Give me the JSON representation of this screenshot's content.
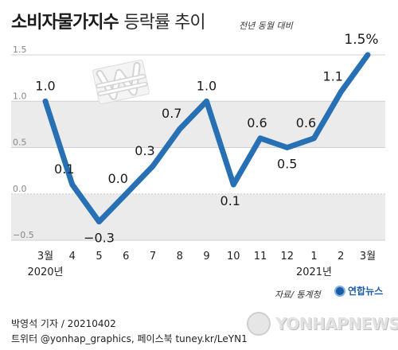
{
  "header": {
    "title_bold": "소비자물가지수",
    "title_light": "등락률 추이",
    "subtitle": "전년 동월 대비"
  },
  "chart_data": {
    "type": "line",
    "title": "소비자물가지수 등락률 추이",
    "subtitle": "전년 동월 대비",
    "categories": [
      "3월",
      "4",
      "5",
      "6",
      "7",
      "8",
      "9",
      "10",
      "11",
      "12",
      "1",
      "2",
      "3월"
    ],
    "year_labels": [
      {
        "label": "2020년",
        "category_index": 0
      },
      {
        "label": "2021년",
        "category_index": 10
      }
    ],
    "series": [
      {
        "values": [
          1.0,
          0.1,
          -0.3,
          0.0,
          0.3,
          0.7,
          1.0,
          0.1,
          0.6,
          0.5,
          0.6,
          1.1,
          1.5
        ],
        "data_labels": [
          "1.0",
          "0.1",
          "−0.3",
          "0.0",
          "0.3",
          "0.7",
          "1.0",
          "0.1",
          "0.6",
          "0.5",
          "0.6",
          "1.1",
          "1.5%"
        ]
      }
    ],
    "yticks": [
      -0.5,
      0.0,
      0.5,
      1.0,
      1.5
    ],
    "ytick_labels": [
      "−0.5",
      "0.0",
      "0.5",
      "1.0",
      "1.5"
    ],
    "ylim": [
      -0.5,
      1.5
    ],
    "grid": true,
    "line_color": "#2870b4",
    "band_color": "#ebebeb"
  },
  "footer": {
    "byline": "박영석 기자 / 20210402",
    "social": "트위터 @yonhap_graphics, 페이스북 tuney.kr/LeYN1",
    "source": "자료/ 통계청",
    "logo_text": "연합뉴스",
    "watermark_text": "YONHAPNEWS"
  }
}
